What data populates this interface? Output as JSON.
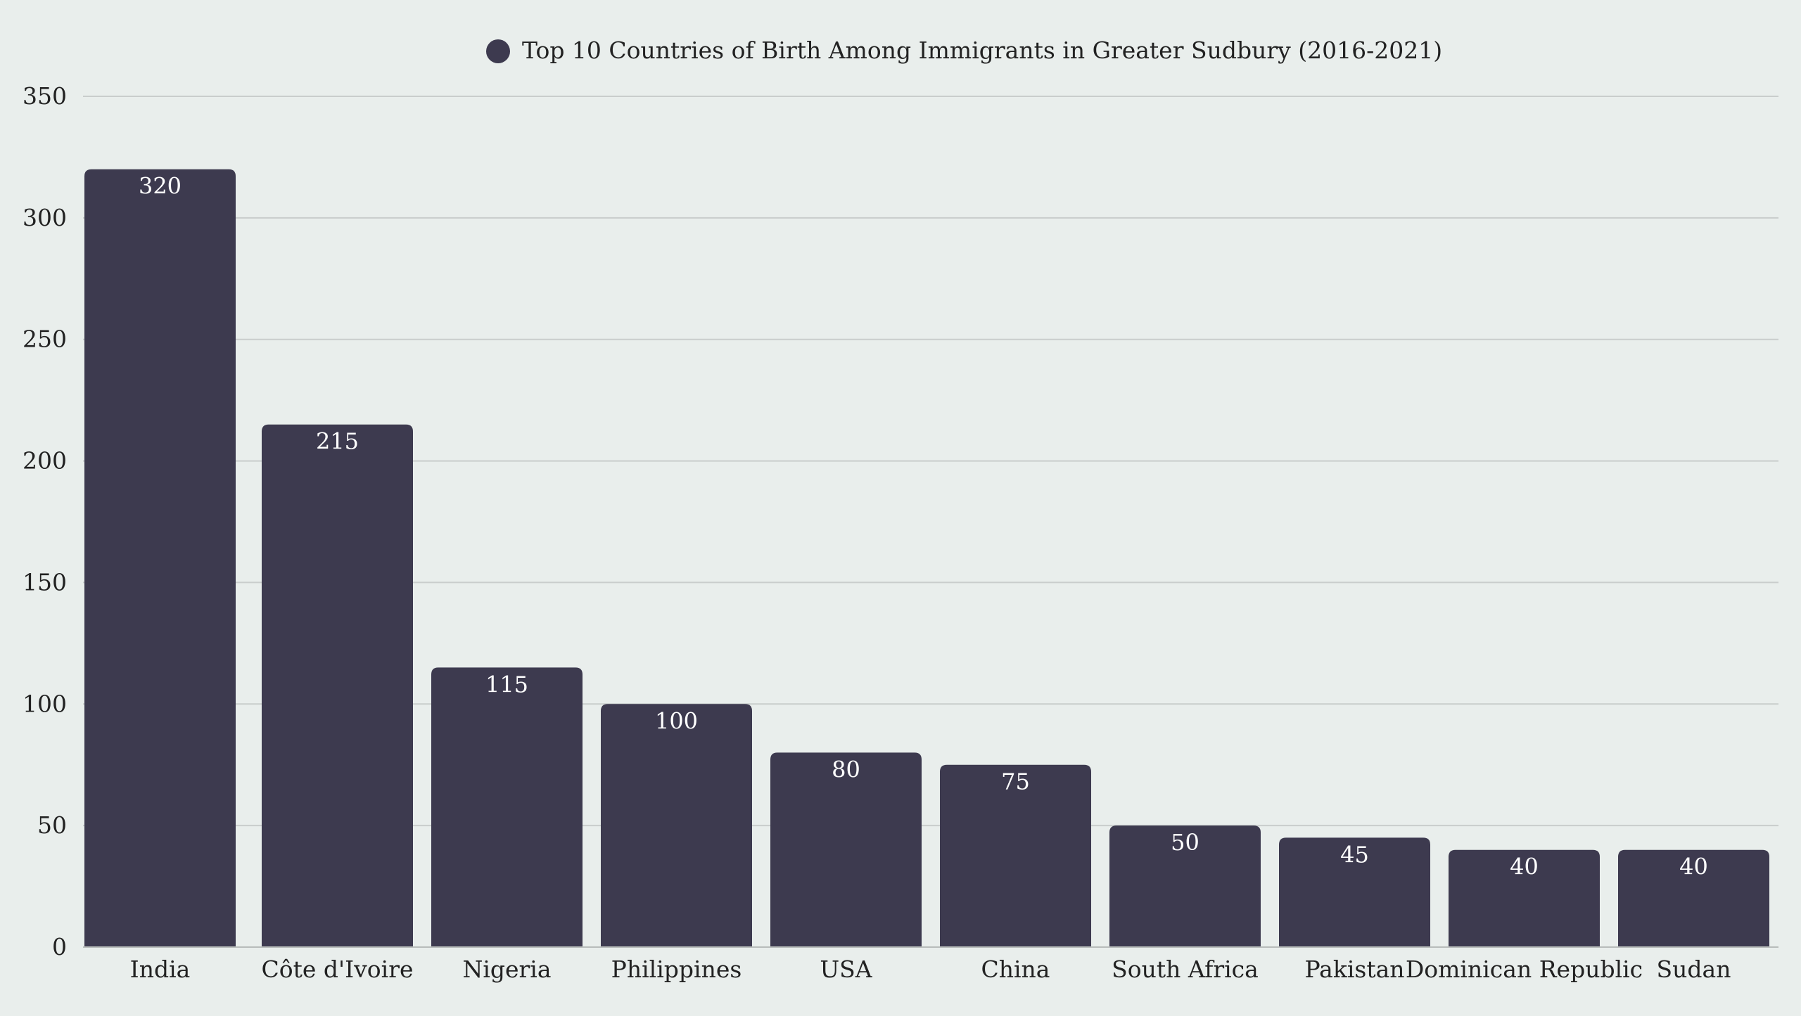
{
  "chart_data": {
    "type": "bar",
    "categories": [
      "India",
      "Côte d'Ivoire",
      "Nigeria",
      "Philippines",
      "USA",
      "China",
      "South Africa",
      "Pakistan",
      "Dominican Republic",
      "Sudan"
    ],
    "series": [
      {
        "name": "Top 10 Countries of Birth Among Immigrants in Greater Sudbury (2016-2021)",
        "values": [
          320,
          215,
          115,
          100,
          80,
          75,
          50,
          45,
          40,
          40
        ]
      }
    ],
    "yticks": [
      "0",
      "50",
      "100",
      "150",
      "200",
      "250",
      "300",
      "350"
    ],
    "ylim": [
      0,
      350
    ],
    "grid": true,
    "legend_position": "top-center",
    "data_labels": true,
    "colors": {
      "bar": "#3d3a4f",
      "background": "#e9eeec",
      "gridline": "#c9cdcc"
    }
  }
}
